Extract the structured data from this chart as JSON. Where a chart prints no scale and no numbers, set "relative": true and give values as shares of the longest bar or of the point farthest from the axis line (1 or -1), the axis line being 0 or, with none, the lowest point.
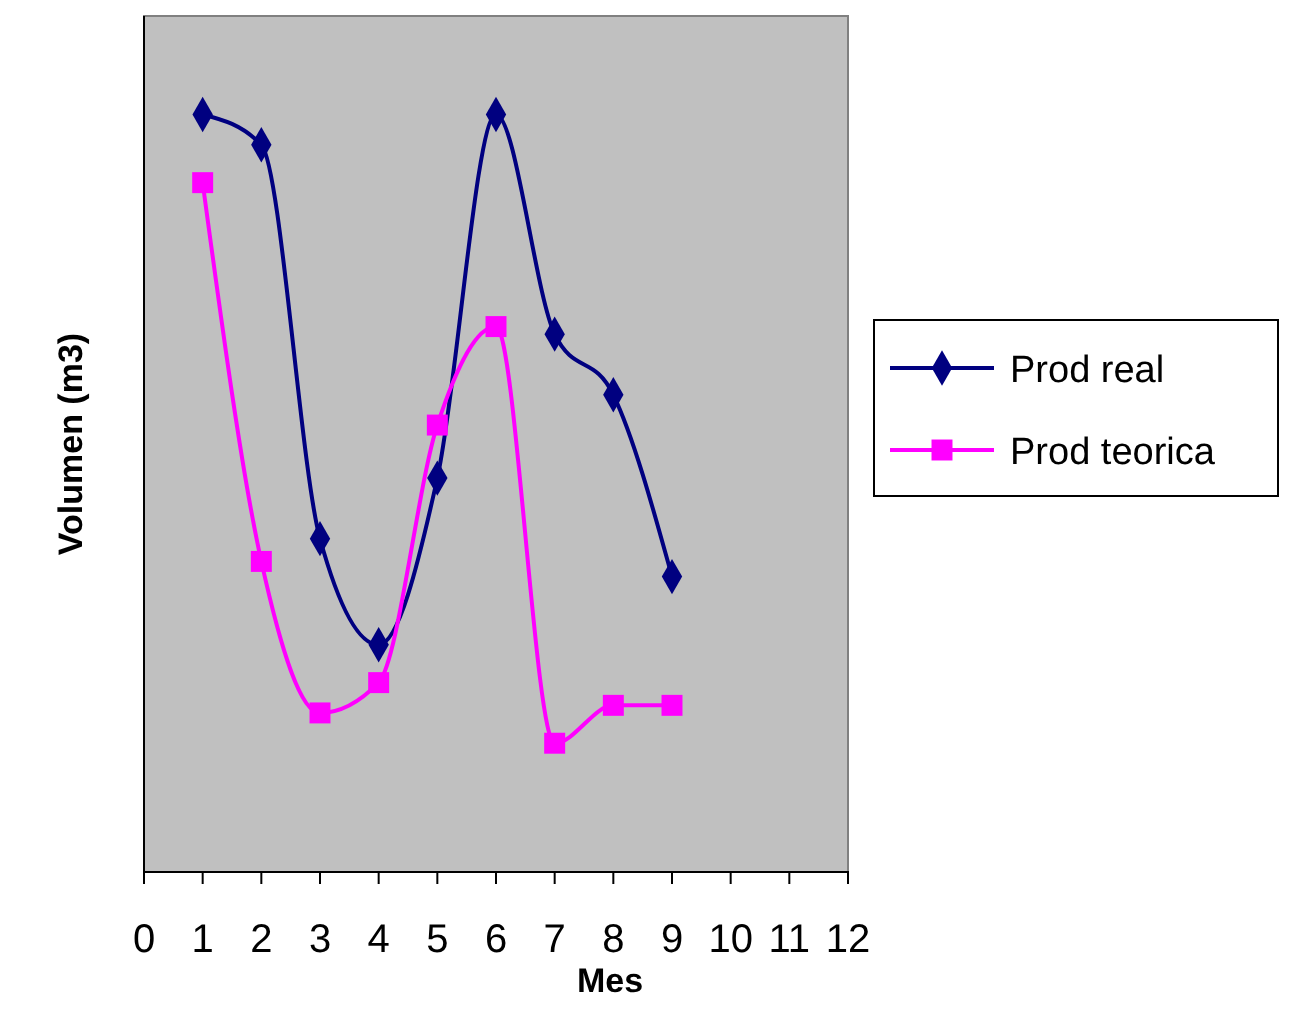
{
  "chart_data": {
    "type": "line",
    "xlabel": "Mes",
    "ylabel": "Volumen (m3)",
    "relative": true,
    "x": [
      1,
      2,
      3,
      4,
      5,
      6,
      7,
      8,
      9
    ],
    "xlim": [
      0,
      12
    ],
    "xticks": [
      0,
      1,
      2,
      3,
      4,
      5,
      6,
      7,
      8,
      9,
      10,
      11,
      12
    ],
    "legend": "right",
    "series": [
      {
        "name": "Prod real",
        "color": "#000080",
        "marker": "diamond",
        "values": [
          1,
          0.96,
          0.44,
          0.3,
          0.52,
          1,
          0.71,
          0.63,
          0.39
        ]
      },
      {
        "name": "Prod teorica",
        "color": "#ff00ff",
        "marker": "square",
        "values": [
          0.91,
          0.41,
          0.21,
          0.25,
          0.59,
          0.72,
          0.17,
          0.22,
          0.22
        ]
      }
    ]
  }
}
